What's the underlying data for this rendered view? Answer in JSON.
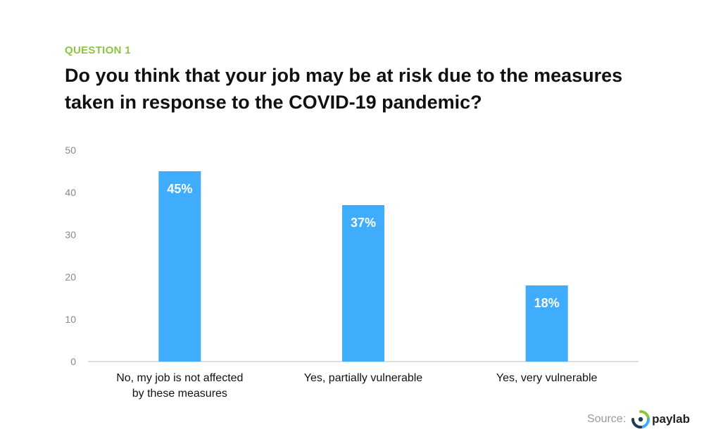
{
  "header": {
    "eyebrow": "QUESTION 1",
    "title": "Do you think that your job may be at risk due to the measures taken in response to the COVID-19 pandemic?"
  },
  "chart_data": {
    "type": "bar",
    "categories": [
      [
        "No, my job is not affected",
        "by these measures"
      ],
      [
        "Yes, partially vulnerable"
      ],
      [
        "Yes, very vulnerable"
      ]
    ],
    "values": [
      45,
      37,
      18
    ],
    "data_labels": [
      "45%",
      "37%",
      "18%"
    ],
    "yticks": [
      "0",
      "10",
      "20",
      "30",
      "40",
      "50"
    ],
    "ylim": [
      0,
      50
    ],
    "grid": false,
    "bar_color": "#3fadfb",
    "axis_color": "#bbbbbb"
  },
  "footer": {
    "source_label": "Source:",
    "logo_text": "paylab",
    "logo_icon": "paylab-logo-icon"
  }
}
